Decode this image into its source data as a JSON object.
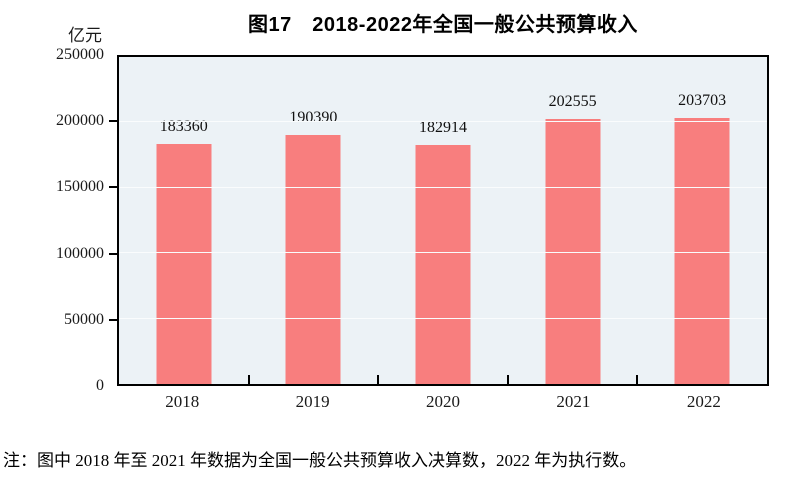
{
  "header": {
    "title": "图17　2018-2022年全国一般公共预算收入",
    "unit_label": "亿元"
  },
  "chart_data": {
    "type": "bar",
    "title": "图17　2018-2022年全国一般公共预算收入",
    "categories": [
      "2018",
      "2019",
      "2020",
      "2021",
      "2022"
    ],
    "values": [
      183360,
      190390,
      182914,
      202555,
      203703
    ],
    "xlabel": "",
    "ylabel": "亿元",
    "ylim": [
      0,
      250000
    ],
    "ytick_step": 50000,
    "yticks": [
      0,
      50000,
      100000,
      150000,
      200000,
      250000
    ],
    "grid": true,
    "legend": "none",
    "colors": {
      "bar_fill": "#f87e7e",
      "plot_background": "#ecf2f6",
      "gridline": "#fafcfd",
      "border": "#000000",
      "text": "#1a1a1a"
    }
  },
  "note": {
    "text": "注：图中 2018 年至 2021 年数据为全国一般公共预算收入决算数，2022 年为执行数。"
  }
}
